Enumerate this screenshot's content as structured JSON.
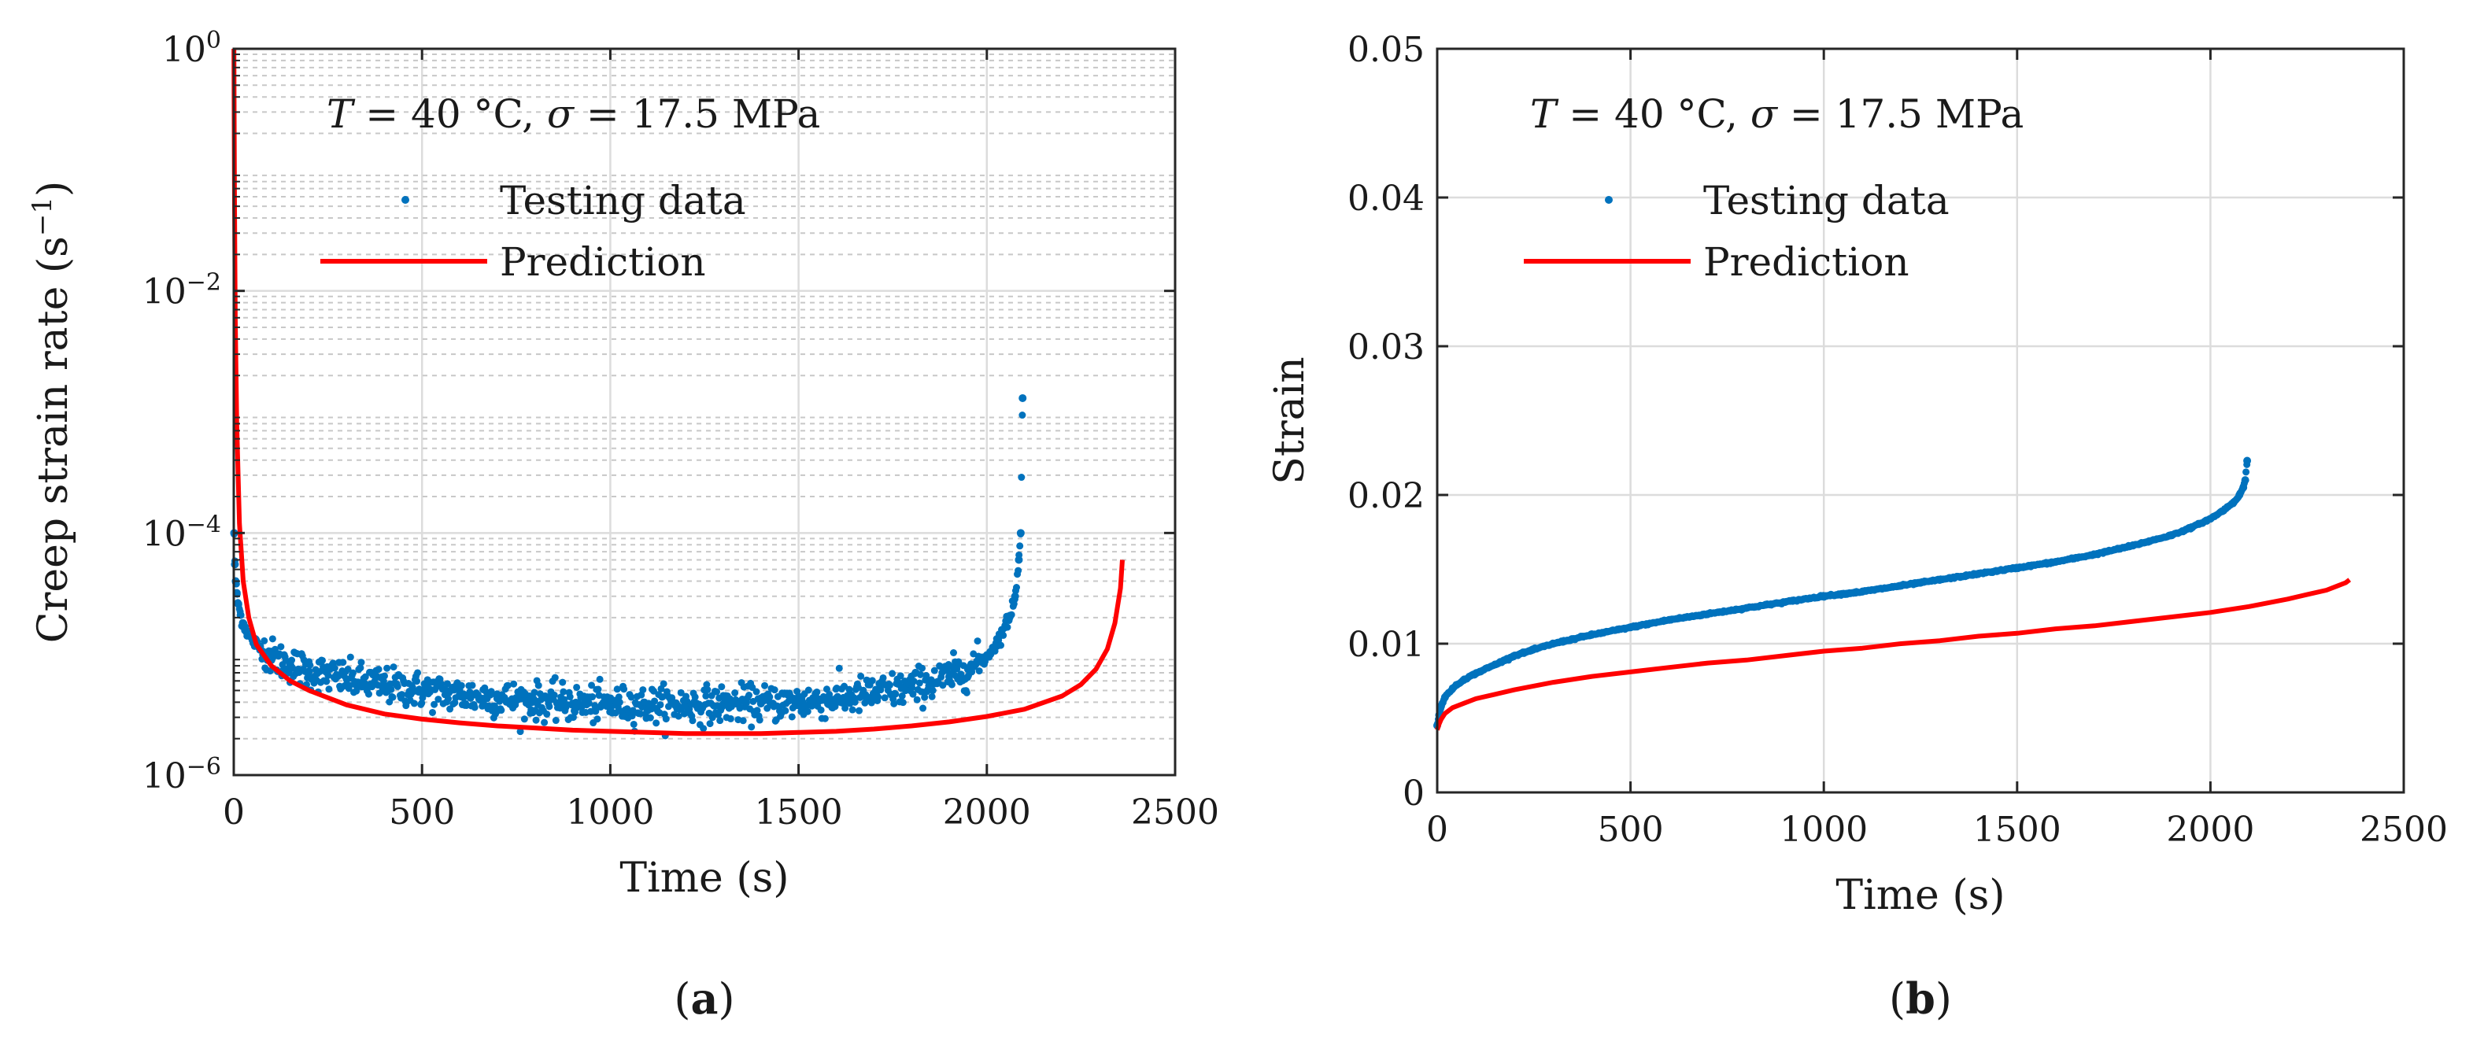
{
  "chart_data": [
    {
      "type": "scatter",
      "panel": "a",
      "caption": "(a)",
      "caption_letter": "a",
      "annotation": "T = 40 °C, σ = 17.5 MPa",
      "annotation_parts": {
        "T": "T",
        "T_value": " = 40 °C, ",
        "sigma": "σ",
        "sigma_value": " = 17.5 MPa"
      },
      "xlabel": "Time (s)",
      "ylabel": "Creep strain rate (s",
      "ylabel_exp": "−1",
      "ylabel_close": ")",
      "yscale": "log",
      "xlim": [
        0,
        2500
      ],
      "ylim": [
        1e-06,
        1
      ],
      "xticks": [
        0,
        500,
        1000,
        1500,
        2000,
        2500
      ],
      "xtick_labels": [
        "0",
        "500",
        "1000",
        "1500",
        "2000",
        "2500"
      ],
      "yticks": [
        1e-06,
        0.0001,
        0.01,
        1
      ],
      "ytick_labels": [
        {
          "base": "10",
          "exp": "−6"
        },
        {
          "base": "10",
          "exp": "−4"
        },
        {
          "base": "10",
          "exp": "−2"
        },
        {
          "base": "10",
          "exp": "0"
        }
      ],
      "grid": true,
      "legend": [
        "Testing data",
        "Prediction"
      ],
      "series": [
        {
          "name": "Testing data",
          "style": "markers",
          "color": "#0072BD",
          "x": [
            1,
            3,
            5,
            8,
            12,
            18,
            25,
            35,
            50,
            70,
            100,
            150,
            200,
            300,
            400,
            500,
            600,
            700,
            800,
            900,
            1000,
            1100,
            1200,
            1300,
            1400,
            1500,
            1600,
            1700,
            1800,
            1900,
            1950,
            2000,
            2030,
            2060,
            2075,
            2085,
            2090,
            2095
          ],
          "y": [
            0.0001,
            5.5e-05,
            4e-05,
            3.2e-05,
            2.6e-05,
            2.1e-05,
            1.8e-05,
            1.55e-05,
            1.3e-05,
            1.12e-05,
            9.5e-06,
            8.2e-06,
            7.2e-06,
            6.2e-06,
            5.5e-06,
            5e-06,
            4.6e-06,
            4.3e-06,
            4.1e-06,
            3.9e-06,
            3.8e-06,
            3.8e-06,
            3.8e-06,
            3.85e-06,
            3.9e-06,
            4e-06,
            4.3e-06,
            4.7e-06,
            5.3e-06,
            6.5e-06,
            7.5e-06,
            9.5e-06,
            1.3e-05,
            2e-05,
            3e-05,
            6e-05,
            0.0001,
            0.0013
          ],
          "scatter_noise_note": "dense noisy band between ~2e-6 and ~8e-6 for t in 100–1950 s"
        },
        {
          "name": "Prediction",
          "style": "line",
          "color": "#FF0000",
          "x": [
            0.5,
            1,
            2,
            4,
            8,
            15,
            25,
            40,
            60,
            100,
            150,
            200,
            300,
            400,
            500,
            600,
            700,
            800,
            900,
            1000,
            1100,
            1200,
            1300,
            1400,
            1500,
            1600,
            1700,
            1800,
            1900,
            2000,
            2100,
            2200,
            2250,
            2290,
            2320,
            2340,
            2355,
            2360
          ],
          "y": [
            1,
            0.3,
            0.05,
            0.006,
            0.0008,
            0.00012,
            4e-05,
            2e-05,
            1.2e-05,
            8e-06,
            6e-06,
            5e-06,
            3.8e-06,
            3.2e-06,
            2.9e-06,
            2.7e-06,
            2.55e-06,
            2.45e-06,
            2.35e-06,
            2.3e-06,
            2.25e-06,
            2.2e-06,
            2.2e-06,
            2.2e-06,
            2.25e-06,
            2.3e-06,
            2.4e-06,
            2.55e-06,
            2.75e-06,
            3.05e-06,
            3.5e-06,
            4.5e-06,
            5.6e-06,
            7.5e-06,
            1.1e-05,
            1.8e-05,
            3.5e-05,
            6e-05
          ]
        }
      ]
    },
    {
      "type": "scatter",
      "panel": "b",
      "caption": "(b)",
      "caption_letter": "b",
      "annotation": "T = 40 °C, σ = 17.5 MPa",
      "annotation_parts": {
        "T": "T",
        "T_value": " = 40 °C, ",
        "sigma": "σ",
        "sigma_value": " = 17.5 MPa"
      },
      "xlabel": "Time (s)",
      "ylabel": "Strain",
      "yscale": "linear",
      "xlim": [
        0,
        2500
      ],
      "ylim": [
        0,
        0.05
      ],
      "xticks": [
        0,
        500,
        1000,
        1500,
        2000,
        2500
      ],
      "xtick_labels": [
        "0",
        "500",
        "1000",
        "1500",
        "2000",
        "2500"
      ],
      "yticks": [
        0,
        0.01,
        0.02,
        0.03,
        0.04,
        0.05
      ],
      "ytick_labels": [
        "0",
        "0.01",
        "0.02",
        "0.03",
        "0.04",
        "0.05"
      ],
      "grid": true,
      "legend": [
        "Testing data",
        "Prediction"
      ],
      "series": [
        {
          "name": "Testing data",
          "style": "markers",
          "color": "#0072BD",
          "x": [
            0,
            5,
            10,
            20,
            40,
            70,
            100,
            150,
            200,
            300,
            400,
            500,
            600,
            700,
            800,
            900,
            1000,
            1100,
            1200,
            1300,
            1400,
            1500,
            1600,
            1700,
            1800,
            1900,
            1950,
            2000,
            2030,
            2060,
            2075,
            2085,
            2090,
            2095
          ],
          "y": [
            0.0045,
            0.0052,
            0.0058,
            0.0064,
            0.007,
            0.0076,
            0.008,
            0.0086,
            0.0092,
            0.01,
            0.0106,
            0.0111,
            0.0116,
            0.012,
            0.0124,
            0.0128,
            0.0132,
            0.0135,
            0.0139,
            0.0143,
            0.0147,
            0.0151,
            0.0155,
            0.016,
            0.0166,
            0.0173,
            0.0178,
            0.0184,
            0.0189,
            0.0195,
            0.02,
            0.0205,
            0.021,
            0.0223
          ]
        },
        {
          "name": "Prediction",
          "style": "line",
          "color": "#FF0000",
          "x": [
            0,
            5,
            10,
            20,
            40,
            70,
            100,
            150,
            200,
            300,
            400,
            500,
            600,
            700,
            800,
            900,
            1000,
            1100,
            1200,
            1300,
            1400,
            1500,
            1600,
            1700,
            1800,
            1900,
            2000,
            2100,
            2200,
            2250,
            2300,
            2330,
            2350,
            2360
          ],
          "y": [
            0.0042,
            0.0046,
            0.0049,
            0.0053,
            0.0057,
            0.006,
            0.0063,
            0.0066,
            0.0069,
            0.0074,
            0.0078,
            0.0081,
            0.0084,
            0.0087,
            0.0089,
            0.0092,
            0.0095,
            0.0097,
            0.01,
            0.0102,
            0.0105,
            0.0107,
            0.011,
            0.0112,
            0.0115,
            0.0118,
            0.0121,
            0.0125,
            0.013,
            0.0133,
            0.0136,
            0.0139,
            0.0141,
            0.0143
          ]
        }
      ]
    }
  ]
}
